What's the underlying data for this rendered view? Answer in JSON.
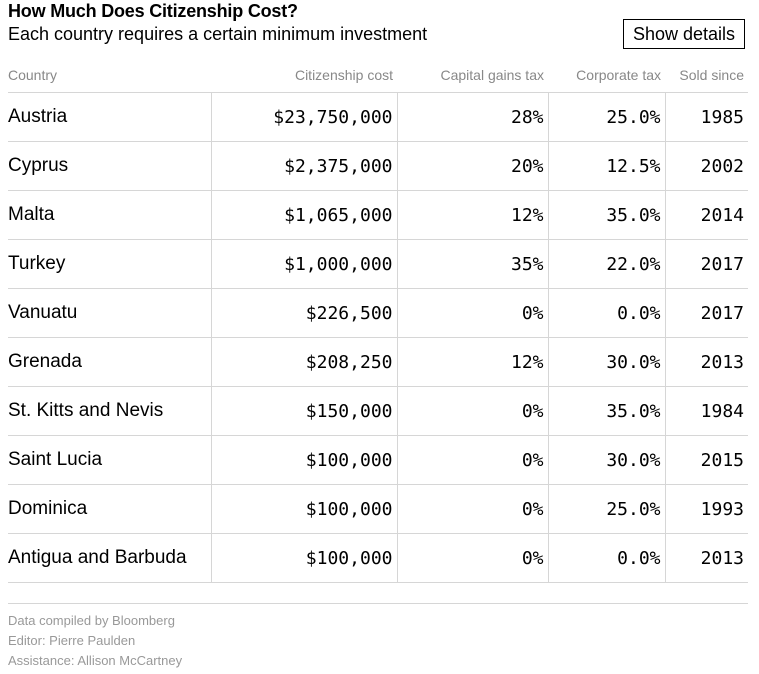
{
  "header": {
    "title": "How Much Does Citizenship Cost?",
    "subtitle": "Each country requires a certain minimum investment",
    "button_label": "Show details"
  },
  "chart_data": {
    "type": "table",
    "title": "How Much Does Citizenship Cost?",
    "subtitle": "Each country requires a certain minimum investment",
    "columns": [
      "Country",
      "Citizenship cost",
      "Capital gains tax",
      "Corporate tax",
      "Sold since"
    ],
    "rows": [
      [
        "Austria",
        "$23,750,000",
        "28%",
        "25.0%",
        "1985"
      ],
      [
        "Cyprus",
        "$2,375,000",
        "20%",
        "12.5%",
        "2002"
      ],
      [
        "Malta",
        "$1,065,000",
        "12%",
        "35.0%",
        "2014"
      ],
      [
        "Turkey",
        "$1,000,000",
        "35%",
        "22.0%",
        "2017"
      ],
      [
        "Vanuatu",
        "$226,500",
        "0%",
        "0.0%",
        "2017"
      ],
      [
        "Grenada",
        "$208,250",
        "12%",
        "30.0%",
        "2013"
      ],
      [
        "St. Kitts and Nevis",
        "$150,000",
        "0%",
        "35.0%",
        "1984"
      ],
      [
        "Saint Lucia",
        "$100,000",
        "0%",
        "30.0%",
        "2015"
      ],
      [
        "Dominica",
        "$100,000",
        "0%",
        "25.0%",
        "1993"
      ],
      [
        "Antigua and Barbuda",
        "$100,000",
        "0%",
        "0.0%",
        "2013"
      ]
    ]
  },
  "footer": {
    "source": "Data compiled by Bloomberg",
    "editor": "Editor: Pierre Paulden",
    "assistance": "Assistance: Allison McCartney"
  },
  "colors": {
    "text": "#000000",
    "muted": "#888888",
    "rule": "#d6d6d6"
  }
}
